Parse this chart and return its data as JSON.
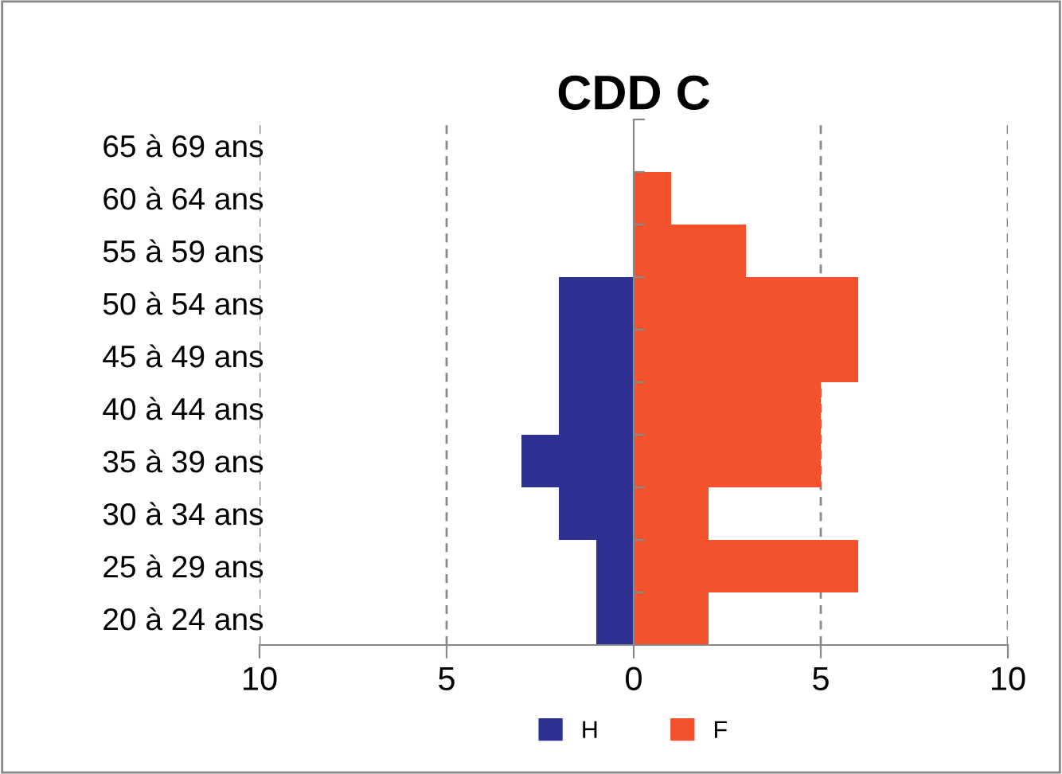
{
  "chart_data": {
    "type": "bar",
    "orientation": "horizontal",
    "title": "CDD C",
    "categories": [
      "65 à 69 ans",
      "60 à 64 ans",
      "55 à 59 ans",
      "50 à 54 ans",
      "45 à 49 ans",
      "40 à 44 ans",
      "35 à 39 ans",
      "30 à 34 ans",
      "25 à 29 ans",
      "20 à 24 ans"
    ],
    "series": [
      {
        "name": "H",
        "color": "#2e3192",
        "values": [
          0,
          0,
          0,
          -2,
          -2,
          -2,
          -3,
          -2,
          -1,
          -1
        ]
      },
      {
        "name": "F",
        "color": "#f4522d",
        "values": [
          0,
          1,
          3,
          6,
          6,
          5,
          5,
          2,
          6,
          2
        ]
      }
    ],
    "xlim": [
      -10,
      10
    ],
    "xticks": [
      {
        "value": -10,
        "label": "10"
      },
      {
        "value": -5,
        "label": "5"
      },
      0,
      5,
      10
    ],
    "stacked": true,
    "grid": "x",
    "legend": "bottom"
  }
}
